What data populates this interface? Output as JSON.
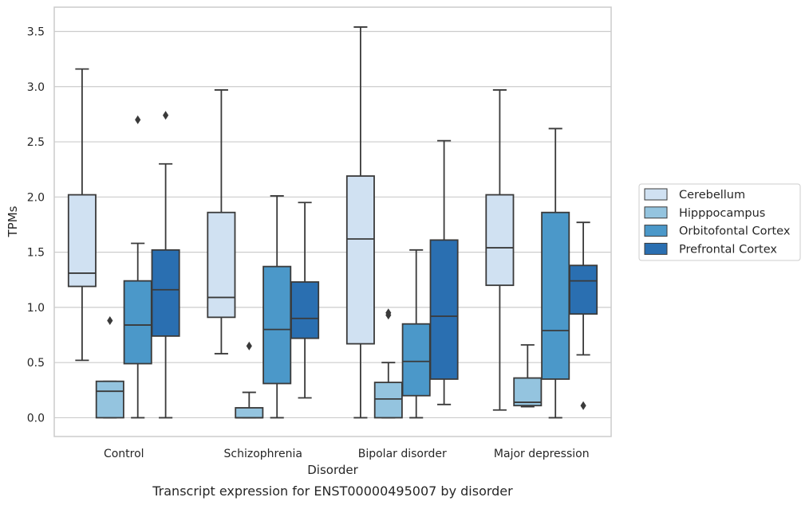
{
  "chart_data": {
    "type": "box",
    "title": "",
    "caption": "Transcript expression for ENST00000495007 by disorder",
    "xlabel": "Disorder",
    "ylabel": "TPMs",
    "ylim": [
      -0.17,
      3.72
    ],
    "yticks": [
      "0.0",
      "0.5",
      "1.0",
      "1.5",
      "2.0",
      "2.5",
      "3.0",
      "3.5"
    ],
    "grid": "horizontal",
    "legend_position": "right",
    "categories": [
      "Control",
      "Schizophrenia",
      "Bipolar disorder",
      "Major depression"
    ],
    "series": [
      {
        "name": "Cerebellum",
        "color": "#d0e1f2",
        "boxes": [
          {
            "whislo": 0.52,
            "q1": 1.19,
            "med": 1.31,
            "q3": 2.02,
            "whishi": 3.16,
            "fliers": []
          },
          {
            "whislo": 0.58,
            "q1": 0.91,
            "med": 1.09,
            "q3": 1.86,
            "whishi": 2.97,
            "fliers": []
          },
          {
            "whislo": 0.0,
            "q1": 0.67,
            "med": 1.62,
            "q3": 2.19,
            "whishi": 3.54,
            "fliers": []
          },
          {
            "whislo": 0.07,
            "q1": 1.2,
            "med": 1.54,
            "q3": 2.02,
            "whishi": 2.97,
            "fliers": []
          }
        ]
      },
      {
        "name": "Hipppocampus",
        "color": "#94c4df",
        "boxes": [
          {
            "whislo": 0.0,
            "q1": 0.0,
            "med": 0.24,
            "q3": 0.33,
            "whishi": 0.33,
            "fliers": [
              0.88
            ]
          },
          {
            "whislo": 0.0,
            "q1": 0.0,
            "med": 0.0,
            "q3": 0.09,
            "whishi": 0.23,
            "fliers": [
              0.65
            ]
          },
          {
            "whislo": 0.0,
            "q1": 0.0,
            "med": 0.17,
            "q3": 0.32,
            "whishi": 0.5,
            "fliers": [
              0.93,
              0.95
            ]
          },
          {
            "whislo": 0.1,
            "q1": 0.11,
            "med": 0.14,
            "q3": 0.36,
            "whishi": 0.66,
            "fliers": []
          }
        ]
      },
      {
        "name": "Orbitofontal Cortex",
        "color": "#4b98c9",
        "boxes": [
          {
            "whislo": 0.0,
            "q1": 0.49,
            "med": 0.84,
            "q3": 1.24,
            "whishi": 1.58,
            "fliers": [
              2.7
            ]
          },
          {
            "whislo": 0.0,
            "q1": 0.31,
            "med": 0.8,
            "q3": 1.37,
            "whishi": 2.01,
            "fliers": []
          },
          {
            "whislo": 0.0,
            "q1": 0.2,
            "med": 0.51,
            "q3": 0.85,
            "whishi": 1.52,
            "fliers": []
          },
          {
            "whislo": 0.0,
            "q1": 0.35,
            "med": 0.79,
            "q3": 1.86,
            "whishi": 2.62,
            "fliers": []
          }
        ]
      },
      {
        "name": "Prefrontal Cortex",
        "color": "#2a6fb1",
        "boxes": [
          {
            "whislo": 0.0,
            "q1": 0.74,
            "med": 1.16,
            "q3": 1.52,
            "whishi": 2.3,
            "fliers": [
              2.74
            ]
          },
          {
            "whislo": 0.18,
            "q1": 0.72,
            "med": 0.9,
            "q3": 1.23,
            "whishi": 1.95,
            "fliers": []
          },
          {
            "whislo": 0.12,
            "q1": 0.35,
            "med": 0.92,
            "q3": 1.61,
            "whishi": 2.51,
            "fliers": []
          },
          {
            "whislo": 0.57,
            "q1": 0.94,
            "med": 1.24,
            "q3": 1.38,
            "whishi": 1.77,
            "fliers": [
              0.11
            ]
          }
        ]
      }
    ]
  }
}
